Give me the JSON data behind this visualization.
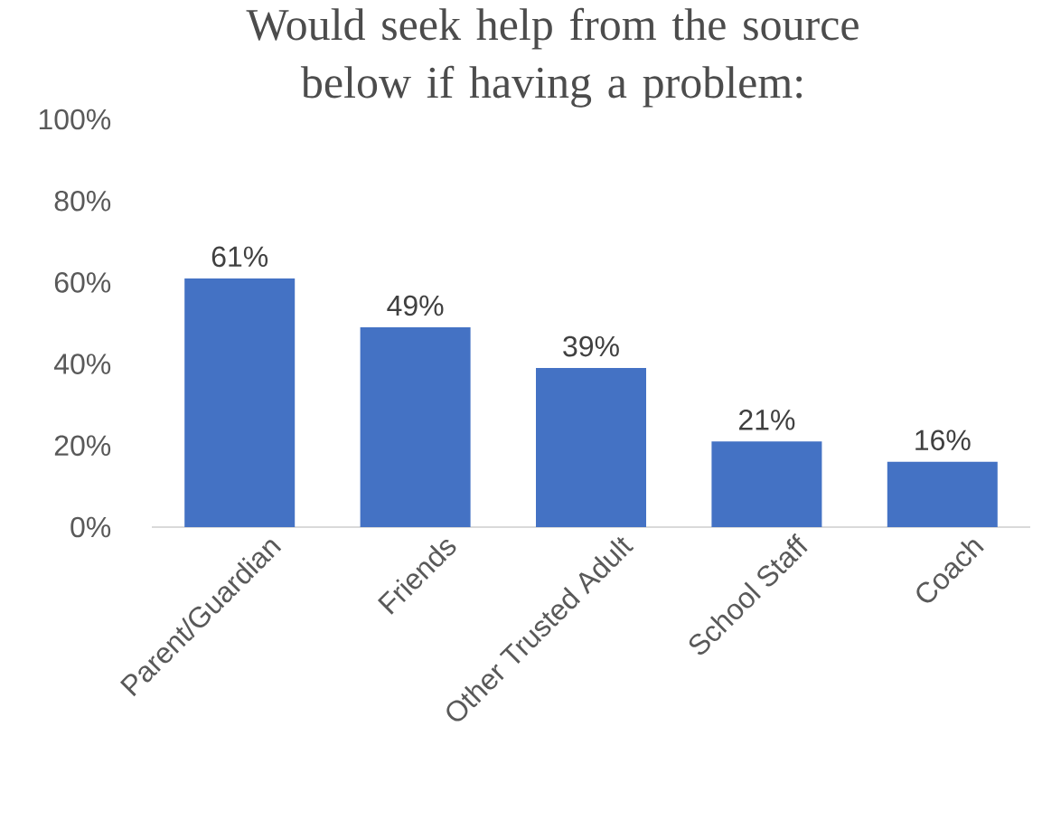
{
  "chart_data": {
    "type": "bar",
    "title": "Would seek help from the source below if having a problem:",
    "categories": [
      "Parent/Guardian",
      "Friends",
      "Other Trusted Adult",
      "School Staff",
      "Coach"
    ],
    "values": [
      61,
      49,
      39,
      21,
      16
    ],
    "value_labels": [
      "61%",
      "49%",
      "39%",
      "21%",
      "16%"
    ],
    "color": "#4472c4",
    "ylim": [
      0,
      100
    ],
    "yticks": [
      {
        "value": 0,
        "label": "0%"
      },
      {
        "value": 20,
        "label": "20%"
      },
      {
        "value": 40,
        "label": "40%"
      },
      {
        "value": 60,
        "label": "60%"
      },
      {
        "value": 80,
        "label": "80%"
      },
      {
        "value": 100,
        "label": "100%"
      }
    ]
  }
}
